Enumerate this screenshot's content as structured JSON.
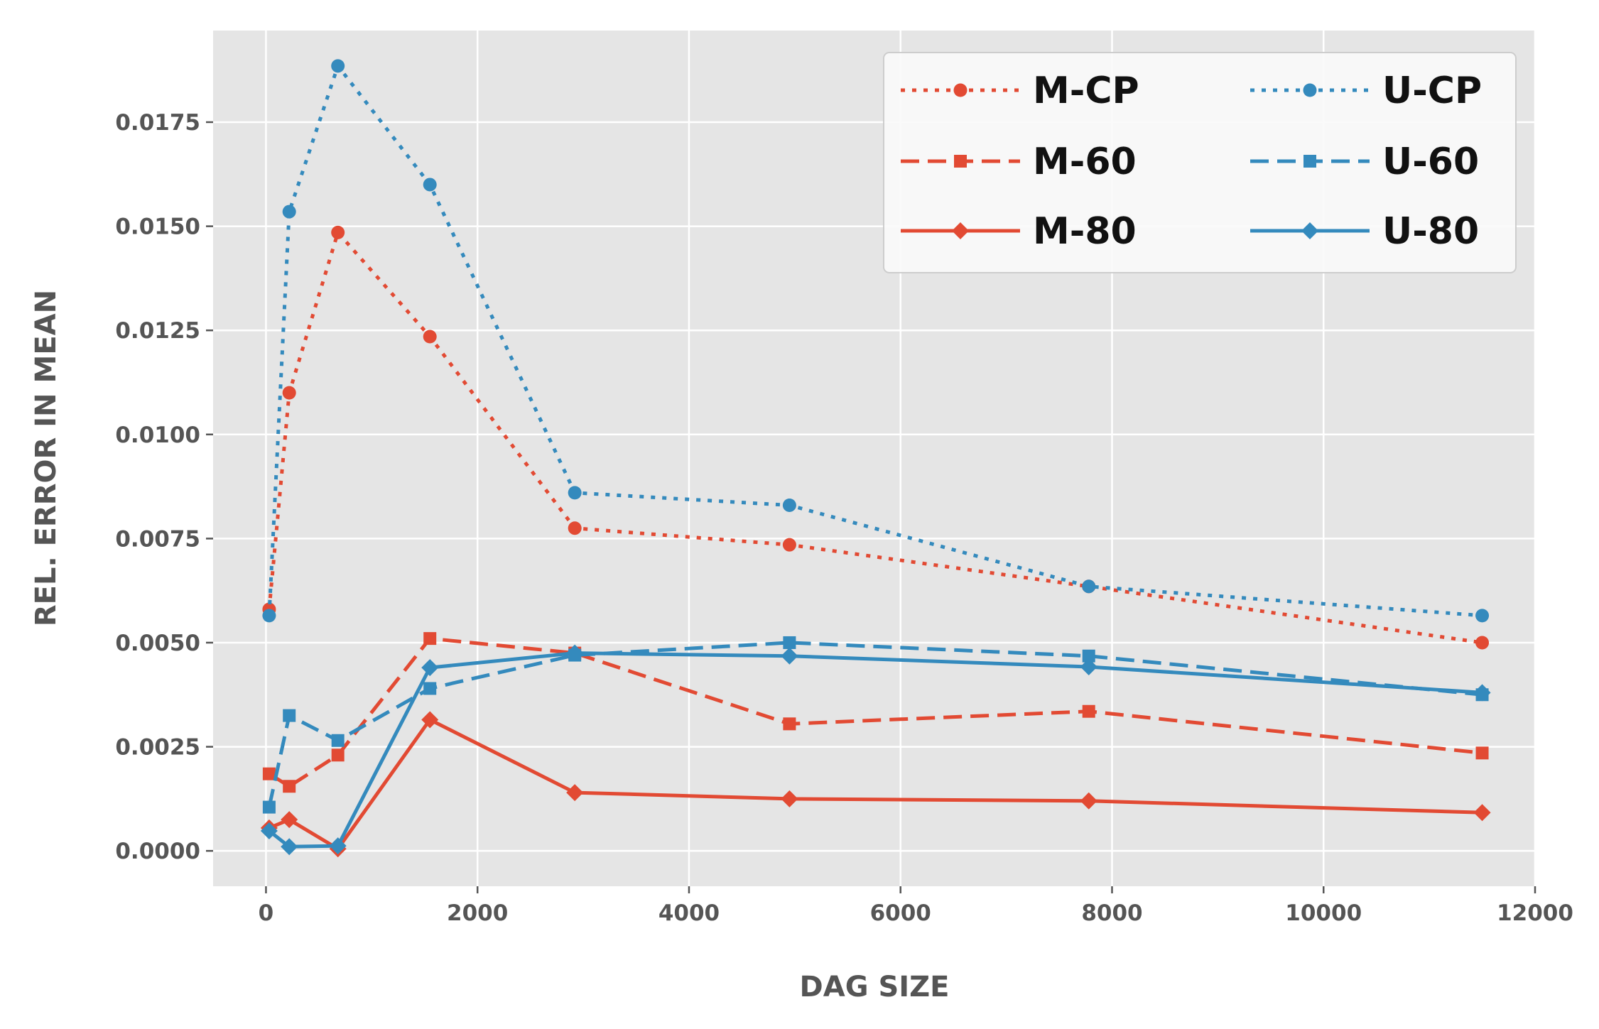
{
  "chart_data": {
    "type": "line",
    "xlabel": "DAG SIZE",
    "ylabel": "REL. ERROR IN MEAN",
    "xlim": [
      -500,
      12000
    ],
    "ylim": [
      -0.00085,
      0.0197
    ],
    "x_ticks": [
      0,
      2000,
      4000,
      6000,
      8000,
      10000,
      12000
    ],
    "x_tick_labels": [
      "0",
      "2000",
      "4000",
      "6000",
      "8000",
      "10000",
      "12000"
    ],
    "y_ticks": [
      0.0,
      0.0025,
      0.005,
      0.0075,
      0.01,
      0.0125,
      0.015,
      0.0175
    ],
    "y_tick_labels": [
      "0.0000",
      "0.0025",
      "0.0050",
      "0.0075",
      "0.0100",
      "0.0125",
      "0.0150",
      "0.0175"
    ],
    "grid": true,
    "legend_position": "top-right",
    "legend_columns": 2,
    "colors": {
      "M": "#E24A33",
      "U": "#348ABD",
      "plot_bg": "#E5E5E5",
      "grid": "#FFFFFF"
    },
    "x": [
      30,
      220,
      680,
      1550,
      2920,
      4950,
      7780,
      11500
    ],
    "series": [
      {
        "name": "M-CP",
        "color": "#E24A33",
        "linestyle": "dotted",
        "marker": "circle",
        "values": [
          0.0058,
          0.011,
          0.01485,
          0.01235,
          0.00775,
          0.00735,
          0.00635,
          0.005
        ]
      },
      {
        "name": "M-60",
        "color": "#E24A33",
        "linestyle": "dashed",
        "marker": "square",
        "values": [
          0.00185,
          0.00155,
          0.0023,
          0.0051,
          0.00475,
          0.00305,
          0.00335,
          0.00235
        ]
      },
      {
        "name": "M-80",
        "color": "#E24A33",
        "linestyle": "solid",
        "marker": "diamond",
        "values": [
          0.00055,
          0.00075,
          5e-05,
          0.00315,
          0.0014,
          0.00125,
          0.0012,
          0.00092
        ]
      },
      {
        "name": "U-CP",
        "color": "#348ABD",
        "linestyle": "dotted",
        "marker": "circle",
        "values": [
          0.00565,
          0.01535,
          0.01885,
          0.016,
          0.0086,
          0.0083,
          0.00635,
          0.00565
        ]
      },
      {
        "name": "U-60",
        "color": "#348ABD",
        "linestyle": "dashed",
        "marker": "square",
        "values": [
          0.00105,
          0.00325,
          0.00265,
          0.0039,
          0.0047,
          0.005,
          0.00468,
          0.00375
        ]
      },
      {
        "name": "U-80",
        "color": "#348ABD",
        "linestyle": "solid",
        "marker": "diamond",
        "values": [
          0.00048,
          0.0001,
          0.00012,
          0.0044,
          0.00475,
          0.00468,
          0.00442,
          0.0038
        ]
      }
    ]
  }
}
